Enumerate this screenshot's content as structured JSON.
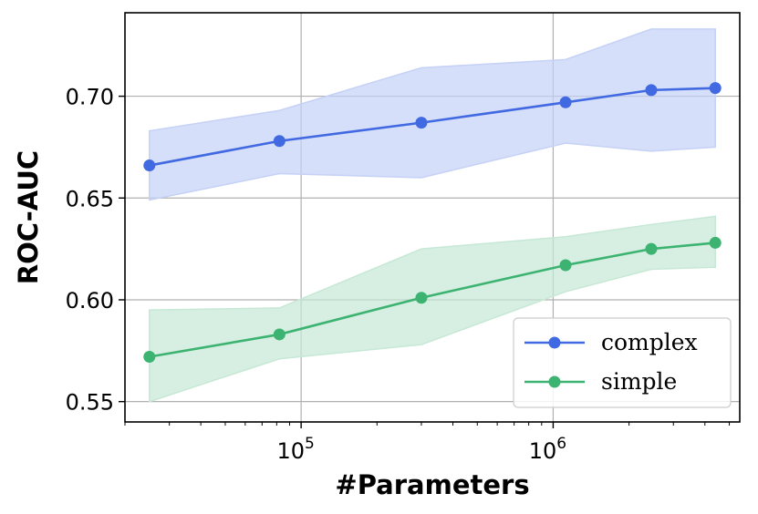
{
  "chart_data": {
    "type": "line",
    "xscale": "log",
    "xlabel": "#Parameters",
    "ylabel": "ROC-AUC",
    "xlim": [
      20000,
      5500000
    ],
    "ylim": [
      0.54,
      0.741
    ],
    "xticks": [
      {
        "value": 100000,
        "base": "10",
        "exp": "5"
      },
      {
        "value": 1000000,
        "base": "10",
        "exp": "6"
      }
    ],
    "yticks": [
      {
        "value": 0.55,
        "label": "0.55"
      },
      {
        "value": 0.6,
        "label": "0.60"
      },
      {
        "value": 0.65,
        "label": "0.65"
      },
      {
        "value": 0.7,
        "label": "0.70"
      }
    ],
    "grid": true,
    "legend": "lower-right",
    "series": [
      {
        "name": "complex",
        "color": "#4169e1",
        "band_color": "#c5d1f6",
        "x": [
          25000,
          82000,
          300000,
          1120000,
          2450000,
          4400000
        ],
        "values": [
          0.666,
          0.678,
          0.687,
          0.697,
          0.703,
          0.704
        ],
        "lower": [
          0.649,
          0.662,
          0.66,
          0.677,
          0.673,
          0.675
        ],
        "upper": [
          0.683,
          0.693,
          0.714,
          0.718,
          0.733,
          0.733
        ]
      },
      {
        "name": "simple",
        "color": "#3cb371",
        "band_color": "#c6e8d5",
        "x": [
          25000,
          82000,
          300000,
          1120000,
          2450000,
          4400000
        ],
        "values": [
          0.572,
          0.583,
          0.601,
          0.617,
          0.625,
          0.628
        ],
        "lower": [
          0.55,
          0.571,
          0.578,
          0.604,
          0.615,
          0.616
        ],
        "upper": [
          0.595,
          0.596,
          0.625,
          0.631,
          0.637,
          0.641
        ]
      }
    ]
  }
}
